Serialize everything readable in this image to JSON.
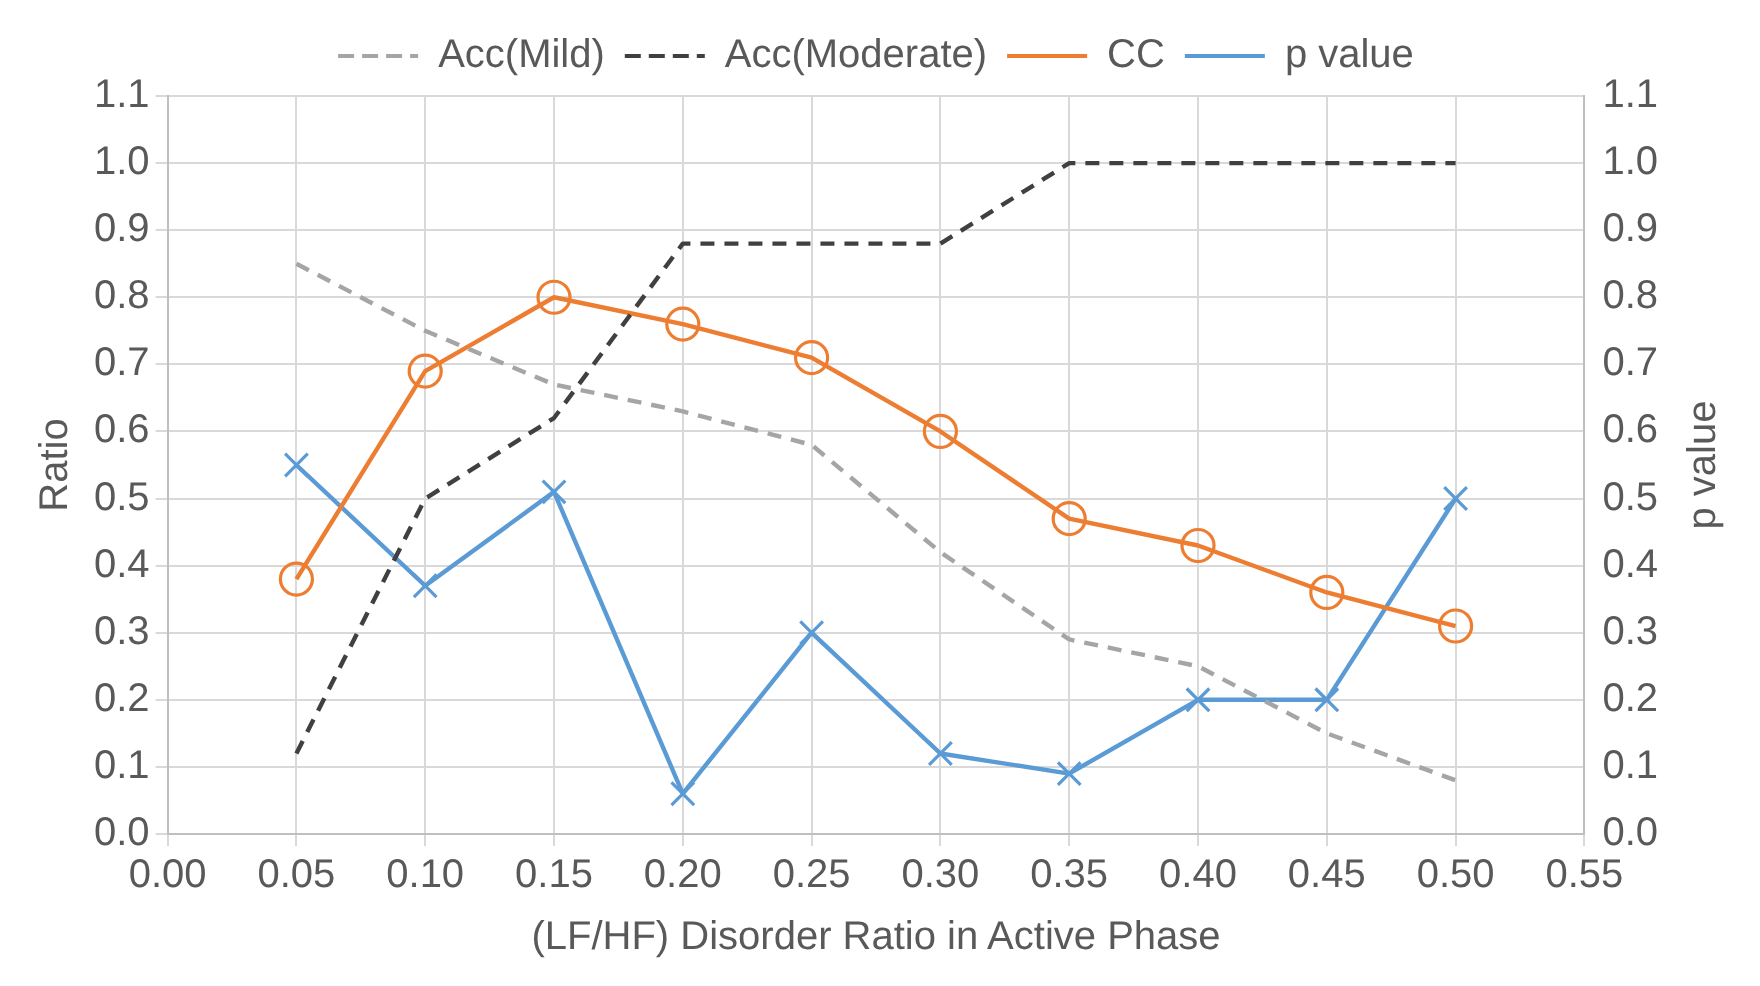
{
  "chart_data": {
    "type": "line",
    "xlabel": "(LF/HF) Disorder Ratio in Active Phase",
    "ylabel": "Ratio",
    "y2label": "p value",
    "x": [
      0.05,
      0.1,
      0.15,
      0.2,
      0.25,
      0.3,
      0.35,
      0.4,
      0.45,
      0.5
    ],
    "xlim": [
      0,
      0.55
    ],
    "xticks": [
      {
        "value": 0,
        "label": "0.00"
      },
      {
        "value": 0.05,
        "label": "0.05"
      },
      {
        "value": 0.1,
        "label": "0.10"
      },
      {
        "value": 0.15,
        "label": "0.15"
      },
      {
        "value": 0.2,
        "label": "0.20"
      },
      {
        "value": 0.25,
        "label": "0.25"
      },
      {
        "value": 0.3,
        "label": "0.30"
      },
      {
        "value": 0.35,
        "label": "0.35"
      },
      {
        "value": 0.4,
        "label": "0.40"
      },
      {
        "value": 0.45,
        "label": "0.45"
      },
      {
        "value": 0.5,
        "label": "0.50"
      },
      {
        "value": 0.55,
        "label": "0.55"
      }
    ],
    "ylim": [
      0,
      1.1
    ],
    "yticks": [
      {
        "value": 0,
        "label": "0.0"
      },
      0.1,
      0.2,
      0.3,
      0.4,
      0.5,
      0.6,
      0.7,
      0.8,
      0.9,
      {
        "value": 1,
        "label": "1.0"
      },
      1.1
    ],
    "y2lim": [
      0,
      1.1
    ],
    "y2ticks": [
      {
        "value": 0,
        "label": "0.0"
      },
      0.1,
      0.2,
      0.3,
      0.4,
      0.5,
      0.6,
      0.7,
      0.8,
      0.9,
      {
        "value": 1,
        "label": "1.0"
      },
      1.1
    ],
    "grid": true,
    "legend": "top",
    "series": [
      {
        "name": "Acc(Mild)",
        "color": "#a5a5a5",
        "line_style": "dashed",
        "marker": "none",
        "values": [
          0.85,
          0.75,
          0.67,
          0.63,
          0.58,
          0.42,
          0.29,
          0.25,
          0.15,
          0.08
        ]
      },
      {
        "name": "Acc(Moderate)",
        "color": "#404040",
        "line_style": "dashed",
        "marker": "none",
        "values": [
          0.12,
          0.5,
          0.62,
          0.88,
          0.88,
          0.88,
          1.0,
          1.0,
          1.0,
          1.0
        ]
      },
      {
        "name": "CC",
        "color": "#ed7d31",
        "line_style": "solid",
        "marker": "circle",
        "values": [
          0.38,
          0.69,
          0.8,
          0.76,
          0.71,
          0.6,
          0.47,
          0.43,
          0.36,
          0.31
        ]
      },
      {
        "name": "p value",
        "color": "#5b9bd5",
        "line_style": "solid",
        "marker": "cross",
        "axis": "y2",
        "values": [
          0.55,
          0.37,
          0.51,
          0.06,
          0.3,
          0.12,
          0.09,
          0.2,
          0.2,
          0.5
        ]
      }
    ]
  }
}
